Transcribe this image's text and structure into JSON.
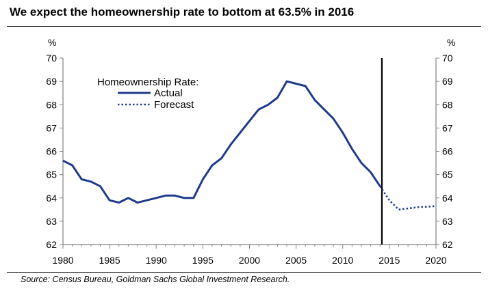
{
  "title": "We expect the homeownership rate to bottom at 63.5% in 2016",
  "source": "Source: Census Bureau, Goldman Sachs Global Investment Research.",
  "colors": {
    "series": "#1F3A8A",
    "axis": "#808080",
    "text": "#000000",
    "divider": "#000000"
  },
  "chart_data": {
    "type": "line",
    "title": "We expect the homeownership rate to bottom at 63.5% in 2016",
    "xlabel": "",
    "ylabel": "%",
    "y2label": "%",
    "xlim": [
      1980,
      2020
    ],
    "ylim": [
      62,
      70
    ],
    "xticks": [
      1980,
      1985,
      1990,
      1995,
      2000,
      2005,
      2010,
      2015,
      2020
    ],
    "yticks": [
      62,
      63,
      64,
      65,
      66,
      67,
      68,
      69,
      70
    ],
    "grid": false,
    "legend": {
      "title": "Homeownership Rate:",
      "placement": "top-left"
    },
    "vertical_marker_x": 2014.2,
    "series": [
      {
        "name": "Actual",
        "style": "solid",
        "x": [
          1980,
          1981,
          1982,
          1983,
          1984,
          1985,
          1986,
          1987,
          1988,
          1989,
          1990,
          1991,
          1992,
          1993,
          1994,
          1995,
          1996,
          1997,
          1998,
          1999,
          2000,
          2001,
          2002,
          2003,
          2004,
          2005,
          2006,
          2007,
          2008,
          2009,
          2010,
          2011,
          2012,
          2013,
          2014
        ],
        "y": [
          65.6,
          65.4,
          64.8,
          64.7,
          64.5,
          63.9,
          63.8,
          64.0,
          63.8,
          63.9,
          64.0,
          64.1,
          64.1,
          64.0,
          64.0,
          64.8,
          65.4,
          65.7,
          66.3,
          66.8,
          67.3,
          67.8,
          68.0,
          68.3,
          69.0,
          68.9,
          68.8,
          68.2,
          67.8,
          67.4,
          66.8,
          66.1,
          65.5,
          65.1,
          64.5
        ]
      },
      {
        "name": "Forecast",
        "style": "dotted",
        "x": [
          2014,
          2015,
          2016,
          2017,
          2018,
          2019,
          2020
        ],
        "y": [
          64.5,
          63.9,
          63.5,
          63.55,
          63.6,
          63.62,
          63.65
        ]
      }
    ]
  }
}
